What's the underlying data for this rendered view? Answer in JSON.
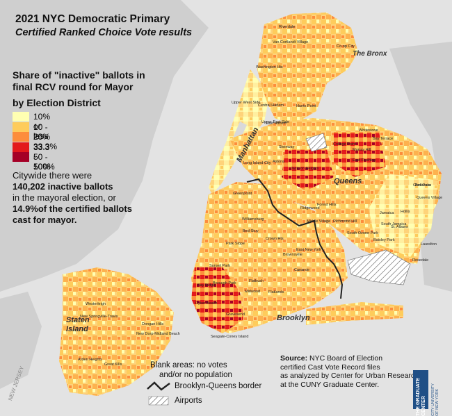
{
  "title": "2021 NYC Democratic Primary",
  "subtitle": "Certified Ranked Choice Vote results",
  "legend": {
    "heading_line1": "Share of \"inactive\" ballots in",
    "heading_line2": "final RCV round for Mayor",
    "heading_line3": "by Election District",
    "items": [
      {
        "label": "10% or less",
        "color": "#ffffb2"
      },
      {
        "label": "10 - 20%",
        "color": "#fecc5c"
      },
      {
        "label": "20 - 33.3%",
        "color": "#fd8d3c"
      },
      {
        "label": "33.3 - 50%",
        "color": "#e31a1c"
      },
      {
        "label": "50 - 100%",
        "color": "#a50026"
      }
    ]
  },
  "note": {
    "line1": "Citywide there were",
    "line2": "140,202 inactive ballots",
    "line3": "in the mayoral election, or",
    "line4": "14.9%of the certified ballots",
    "line5": "cast for mayor."
  },
  "key": {
    "blank_line1": "Blank areas: no votes",
    "blank_line2": "and/or no population",
    "border_label": "Brooklyn-Queens border",
    "airports_label": "Airports"
  },
  "source": {
    "label": "Source:",
    "line1": "NYC Board of Election",
    "line2": "certified Cast Vote Record files",
    "line3": "as analyzed by Center for Urban Research",
    "line4": "at the CUNY Graduate Center."
  },
  "logo": {
    "text": "THE GRADUATE CENTER",
    "subtext": "CITY UNIVERSITY OF NEW YORK"
  },
  "boroughs": [
    "The Bronx",
    "Manhattan",
    "Queens",
    "Brooklyn",
    "Staten Island"
  ],
  "neighborhoods": [
    "Van Cortlandt Village",
    "Co-op City",
    "Riverdale",
    "Washington Hts",
    "Hunts Point",
    "Upper West Side",
    "Upper East Side",
    "Central Harlem",
    "East Harlem",
    "Whitestone",
    "College Point",
    "Bay Terrace",
    "Murray Hill",
    "East Flushing",
    "Steinway",
    "Astoria",
    "Jackson Heights",
    "Long Island City",
    "Greenpoint",
    "Ridgewood",
    "Middle Village",
    "Forest Hills",
    "Glen Oaks",
    "Queens Village",
    "Bellerose",
    "Hollis",
    "Jamaica",
    "South Jamaica",
    "St. Albans",
    "Baisley Park",
    "Richmond Hill",
    "South Ozone Park",
    "Williamsburg",
    "Bed-Stuy",
    "Crown Hts",
    "Park Slope",
    "East New York",
    "Brownsville",
    "Canarsie",
    "Flatlands",
    "Flatbush",
    "Midwood",
    "Bay Ridge",
    "Borough Park",
    "Sunset Park",
    "Dyker Beach",
    "Gravesend",
    "Seagate-Coney Island",
    "Westerleigh",
    "New Springville-Travis",
    "Dongan Hills",
    "New Dorp-Midland Beach",
    "Arden Heights",
    "Great Kills",
    "Laurelton",
    "Rosedale"
  ],
  "outside_label": "NEW JERSEY"
}
